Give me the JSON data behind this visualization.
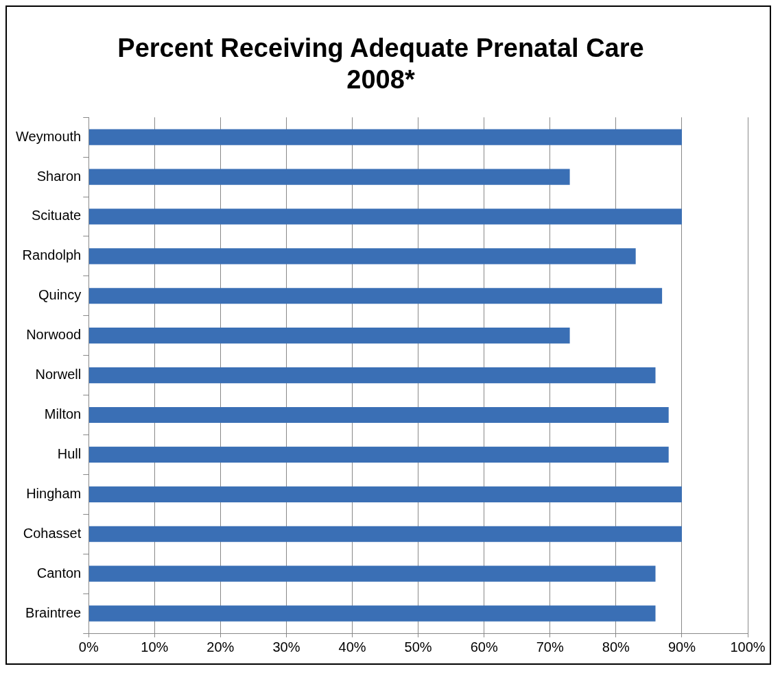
{
  "chart_data": {
    "type": "bar",
    "orientation": "horizontal",
    "title": "Percent Receiving Adequate Prenatal Care\n2008*",
    "categories": [
      "Weymouth",
      "Sharon",
      "Scituate",
      "Randolph",
      "Quincy",
      "Norwood",
      "Norwell",
      "Milton",
      "Hull",
      "Hingham",
      "Cohasset",
      "Canton",
      "Braintree"
    ],
    "values": [
      90,
      73,
      90,
      83,
      87,
      73,
      86,
      88,
      88,
      90,
      90,
      86,
      86
    ],
    "color": "#3a6fb5",
    "xlim": [
      0,
      100
    ],
    "xticks": [
      {
        "value": 0,
        "label": "0%"
      },
      {
        "value": 10,
        "label": "10%"
      },
      {
        "value": 20,
        "label": "20%"
      },
      {
        "value": 30,
        "label": "30%"
      },
      {
        "value": 40,
        "label": "40%"
      },
      {
        "value": 50,
        "label": "50%"
      },
      {
        "value": 60,
        "label": "60%"
      },
      {
        "value": 70,
        "label": "70%"
      },
      {
        "value": 80,
        "label": "80%"
      },
      {
        "value": 90,
        "label": "90%"
      },
      {
        "value": 100,
        "label": "100%"
      }
    ],
    "grid": "x",
    "legend": false
  }
}
